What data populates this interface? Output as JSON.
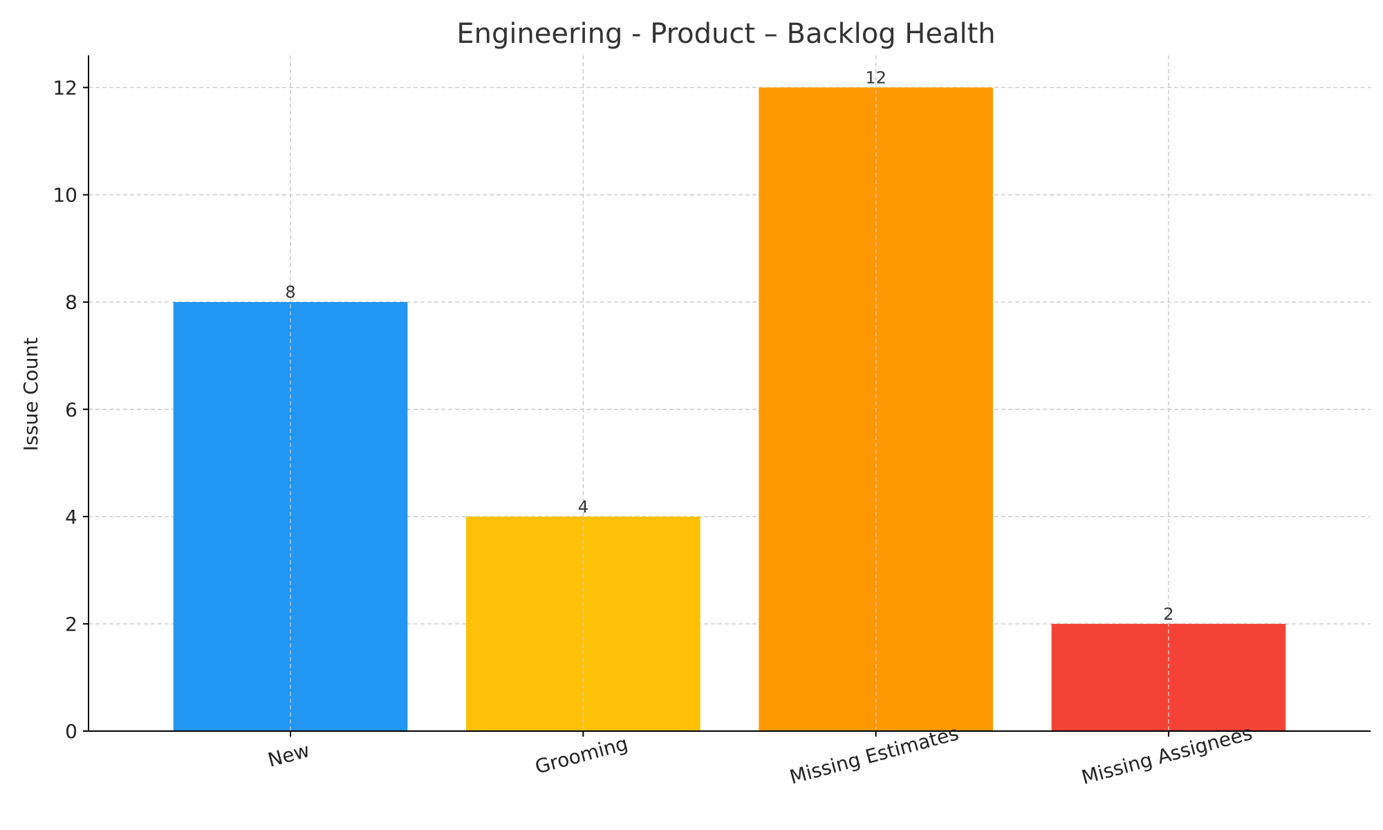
{
  "chart_data": {
    "type": "bar",
    "title": "Engineering - Product – Backlog Health",
    "xlabel": "",
    "ylabel": "Issue Count",
    "categories": [
      "New",
      "Grooming",
      "Missing Estimates",
      "Missing Assignees"
    ],
    "values": [
      8,
      4,
      12,
      2
    ],
    "colors": [
      "#2196F3",
      "#FFC107",
      "#FF9800",
      "#F44336"
    ],
    "ylim": [
      0,
      12.6
    ],
    "yticks": [
      0,
      2,
      4,
      6,
      8,
      10,
      12
    ],
    "grid": true,
    "legend": "none"
  }
}
